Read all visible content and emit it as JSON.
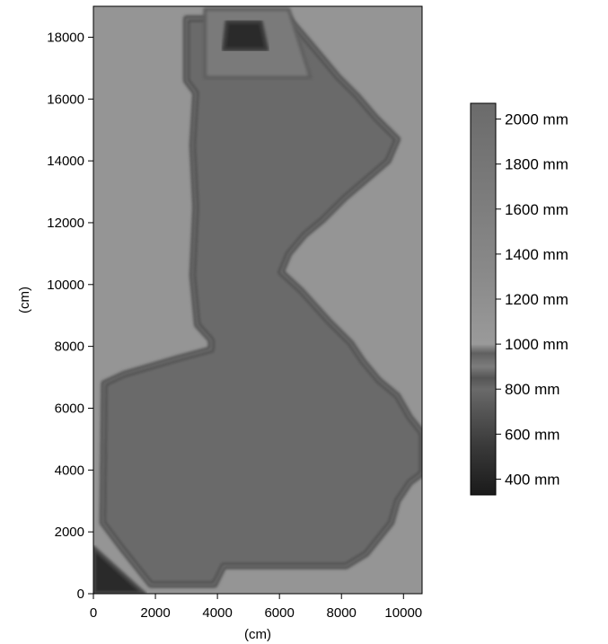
{
  "chart_data": {
    "type": "heatmap",
    "title": "",
    "xlabel": "(cm)",
    "ylabel": "(cm)",
    "xlim": [
      0,
      10600
    ],
    "ylim": [
      0,
      19000
    ],
    "x_ticks": [
      {
        "value": 0,
        "label": "0"
      },
      {
        "value": 2000,
        "label": "2000"
      },
      {
        "value": 4000,
        "label": "4000"
      },
      {
        "value": 6000,
        "label": "6000"
      },
      {
        "value": 8000,
        "label": "8000"
      },
      {
        "value": 10000,
        "label": "10000"
      }
    ],
    "y_ticks": [
      {
        "value": 0,
        "label": "0"
      },
      {
        "value": 2000,
        "label": "2000"
      },
      {
        "value": 4000,
        "label": "4000"
      },
      {
        "value": 6000,
        "label": "6000"
      },
      {
        "value": 8000,
        "label": "8000"
      },
      {
        "value": 10000,
        "label": "10000"
      },
      {
        "value": 12000,
        "label": "12000"
      },
      {
        "value": 14000,
        "label": "14000"
      },
      {
        "value": 16000,
        "label": "16000"
      },
      {
        "value": 18000,
        "label": "18000"
      }
    ],
    "grid": false,
    "colorbar": {
      "range": [
        330,
        2070
      ],
      "unit": "mm",
      "ticks": [
        {
          "value": 2000,
          "label": "2000 mm"
        },
        {
          "value": 1800,
          "label": "1800 mm"
        },
        {
          "value": 1600,
          "label": "1600 mm"
        },
        {
          "value": 1400,
          "label": "1400 mm"
        },
        {
          "value": 1200,
          "label": "1200 mm"
        },
        {
          "value": 1000,
          "label": "1000 mm"
        },
        {
          "value": 800,
          "label": "800 mm"
        },
        {
          "value": 600,
          "label": "600 mm"
        },
        {
          "value": 400,
          "label": "400 mm"
        }
      ],
      "stops": [
        {
          "value": 330,
          "color": "#1a1a1a"
        },
        {
          "value": 550,
          "color": "#3a3a3a"
        },
        {
          "value": 700,
          "color": "#555555"
        },
        {
          "value": 800,
          "color": "#6a6a6a"
        },
        {
          "value": 850,
          "color": "#555555"
        },
        {
          "value": 900,
          "color": "#7c7c7c"
        },
        {
          "value": 960,
          "color": "#606060"
        },
        {
          "value": 1000,
          "color": "#9a9a9a"
        },
        {
          "value": 1300,
          "color": "#8a8a8a"
        },
        {
          "value": 1700,
          "color": "#7a7a7a"
        },
        {
          "value": 2070,
          "color": "#6b6b6b"
        }
      ]
    },
    "regions": [
      {
        "name": "outer-field",
        "fill": "#959595",
        "points": [
          [
            0,
            0
          ],
          [
            10600,
            0
          ],
          [
            10600,
            19000
          ],
          [
            0,
            19000
          ]
        ]
      },
      {
        "name": "building-footprint",
        "fill": "#6b6b6b",
        "edge": "#484848",
        "points": [
          [
            1850,
            300
          ],
          [
            3900,
            300
          ],
          [
            4200,
            900
          ],
          [
            8150,
            900
          ],
          [
            8800,
            1300
          ],
          [
            9600,
            2300
          ],
          [
            9800,
            3000
          ],
          [
            10200,
            3600
          ],
          [
            10600,
            3900
          ],
          [
            10600,
            5200
          ],
          [
            10200,
            5700
          ],
          [
            9800,
            6400
          ],
          [
            9200,
            6900
          ],
          [
            8700,
            7500
          ],
          [
            8300,
            8100
          ],
          [
            7600,
            8800
          ],
          [
            6700,
            9800
          ],
          [
            6050,
            10400
          ],
          [
            6300,
            11000
          ],
          [
            6800,
            11600
          ],
          [
            7400,
            12100
          ],
          [
            8100,
            12800
          ],
          [
            8800,
            13400
          ],
          [
            9500,
            14000
          ],
          [
            9800,
            14700
          ],
          [
            9100,
            15400
          ],
          [
            8500,
            16100
          ],
          [
            7900,
            16700
          ],
          [
            7400,
            17300
          ],
          [
            6900,
            17900
          ],
          [
            6300,
            18600
          ],
          [
            3000,
            18600
          ],
          [
            3000,
            16600
          ],
          [
            3300,
            16200
          ],
          [
            3200,
            14500
          ],
          [
            3300,
            12500
          ],
          [
            3200,
            10300
          ],
          [
            3350,
            8700
          ],
          [
            3800,
            8200
          ],
          [
            3800,
            7900
          ],
          [
            2700,
            7600
          ],
          [
            1000,
            7100
          ],
          [
            350,
            6800
          ],
          [
            300,
            2300
          ],
          [
            900,
            1500
          ]
        ]
      },
      {
        "name": "corner-wedge",
        "fill": "#2a2a2a",
        "edge": "#484848",
        "points": [
          [
            0,
            0
          ],
          [
            1650,
            0
          ],
          [
            0,
            1500
          ]
        ]
      },
      {
        "name": "top-pocket",
        "fill": "#7a7a7a",
        "edge": "#5f5f5f",
        "points": [
          [
            3600,
            16700
          ],
          [
            7000,
            16700
          ],
          [
            6300,
            18900
          ],
          [
            3600,
            18900
          ]
        ]
      },
      {
        "name": "top-dark-spot",
        "fill": "#2c2c2c",
        "edge": "#3c3c3c",
        "points": [
          [
            4200,
            17600
          ],
          [
            5600,
            17600
          ],
          [
            5400,
            18500
          ],
          [
            4300,
            18500
          ]
        ]
      }
    ]
  }
}
